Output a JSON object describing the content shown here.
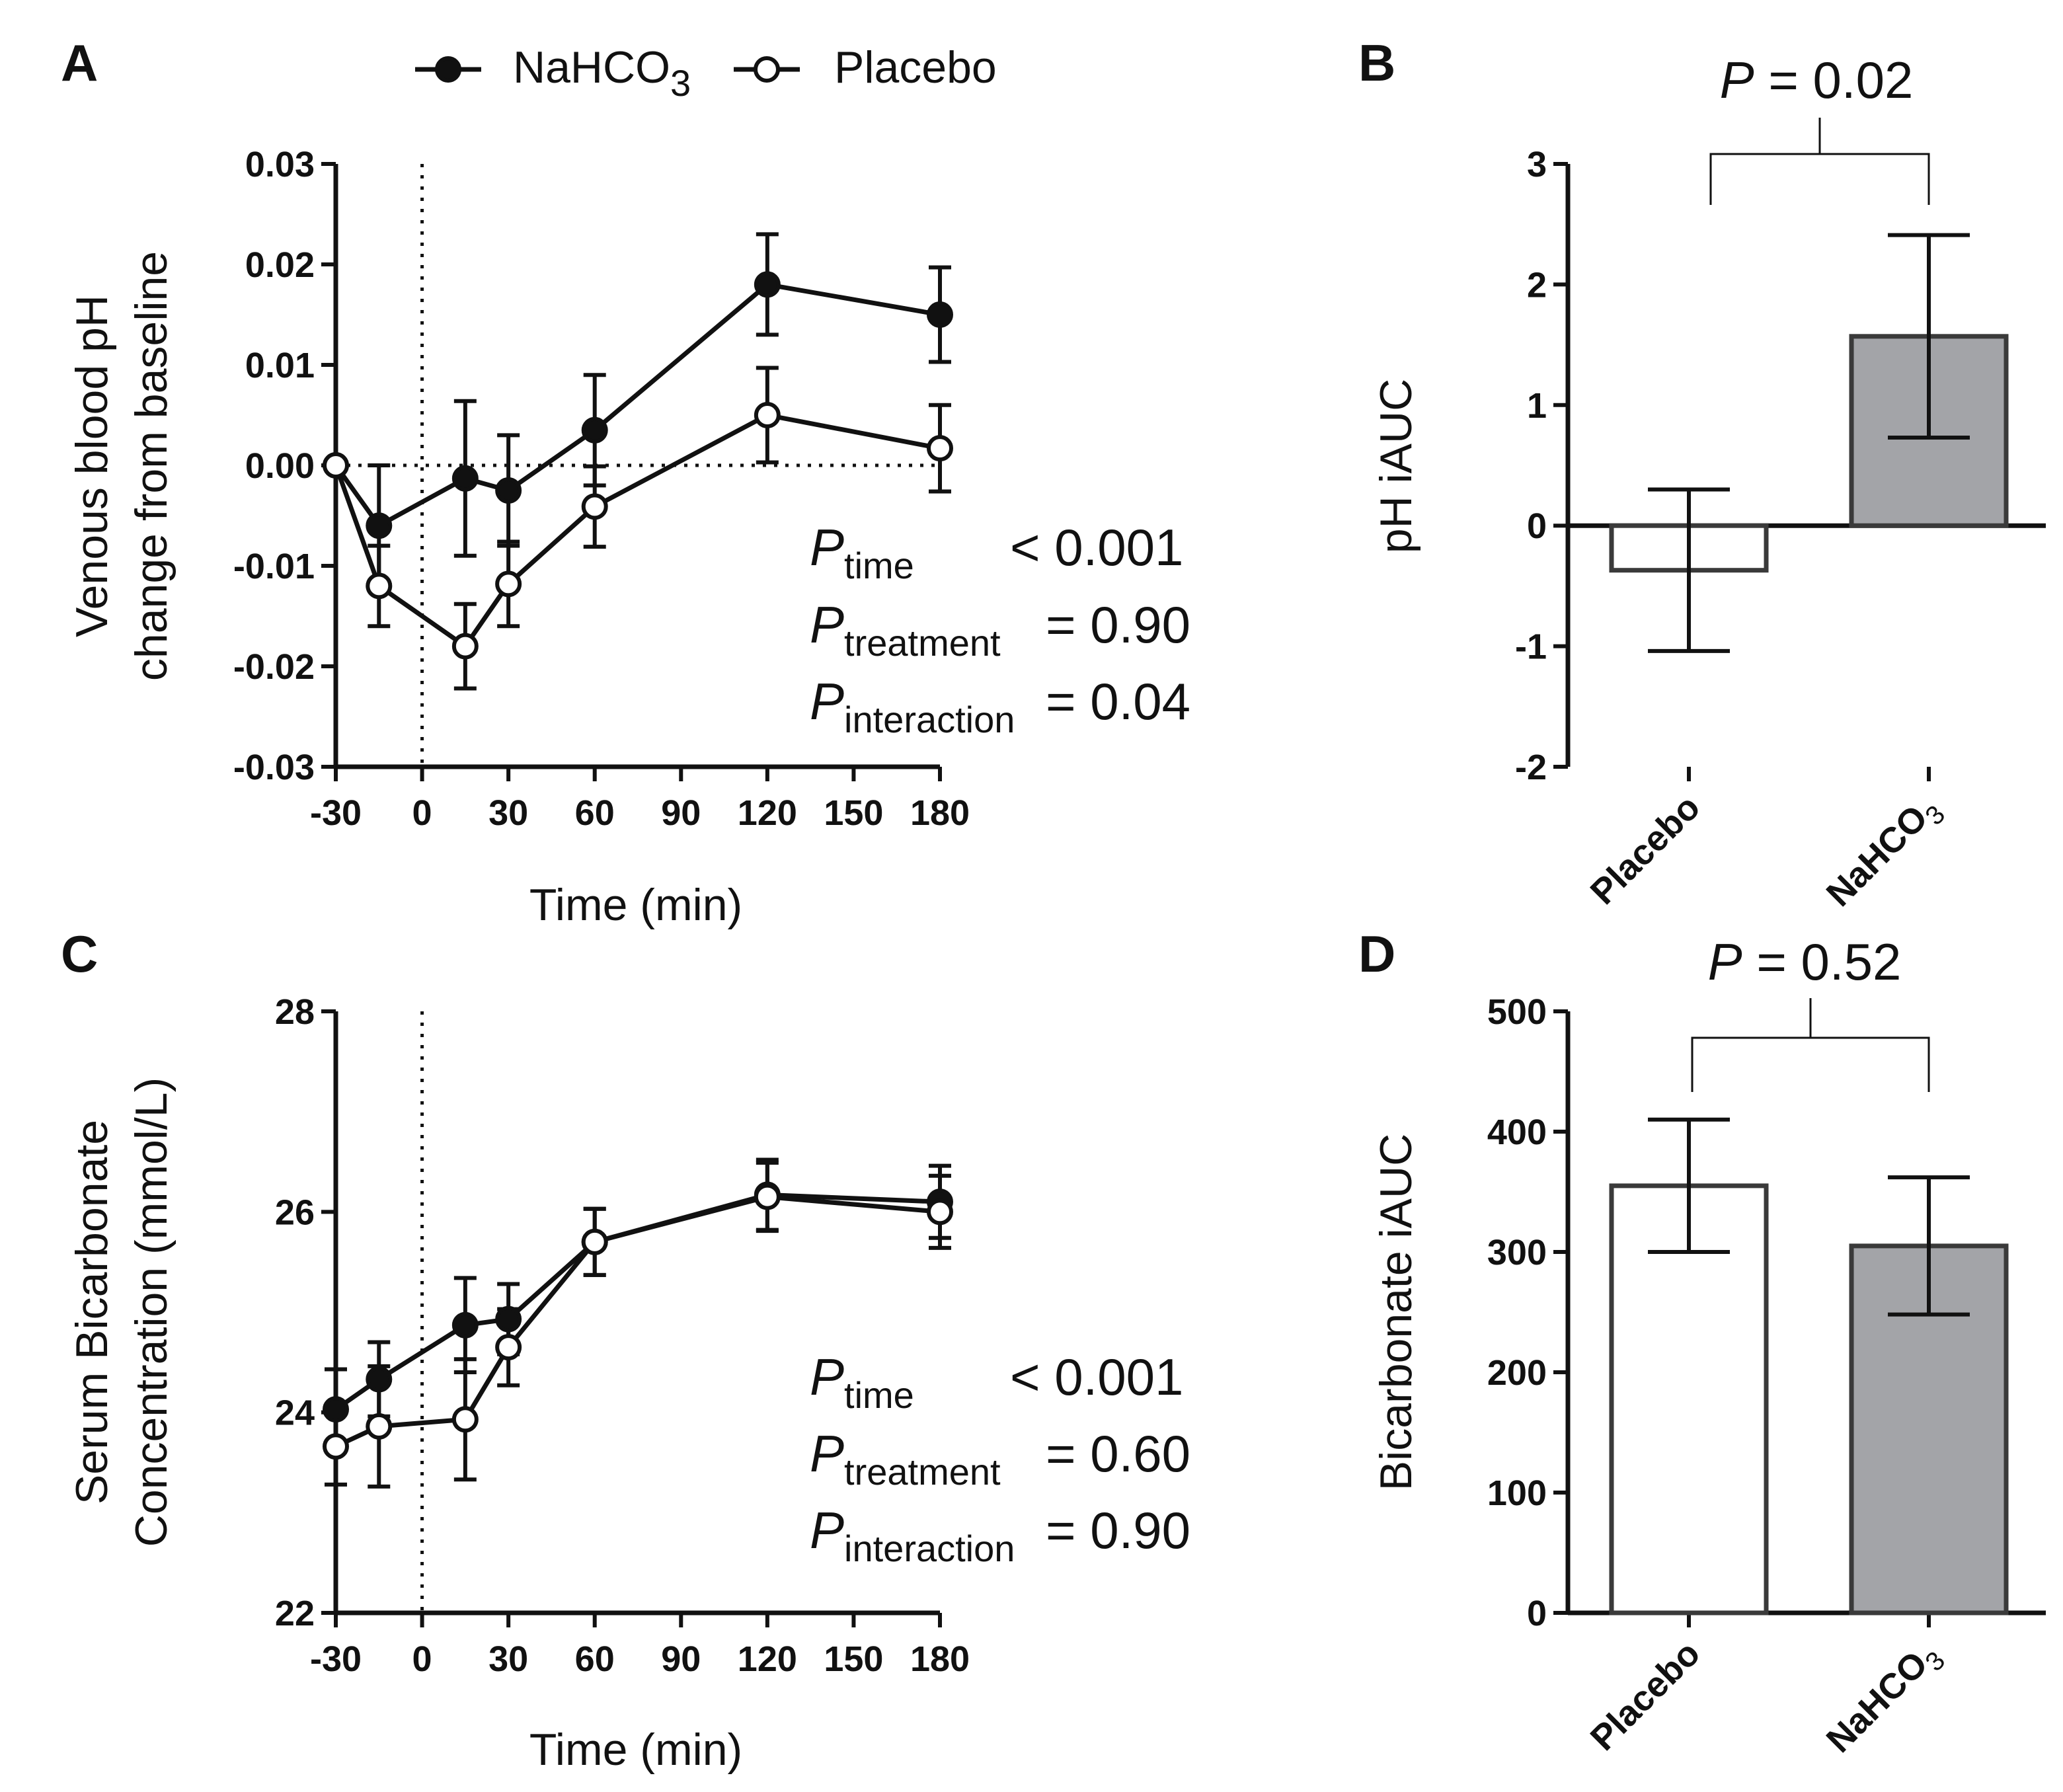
{
  "legend": {
    "nahco3": {
      "base": "NaHCO",
      "sub": "3"
    },
    "placebo": "Placebo"
  },
  "colors": {
    "line": "#111111",
    "nahco3_bar": "#a3a4a8",
    "placebo_bar": "#ffffff",
    "bar_stroke": "#3a3a3a"
  },
  "chart_data": [
    {
      "panel": "A",
      "type": "line",
      "xlabel": "Time (min)",
      "ylabel": [
        "Venous blood pH",
        "change from baseline"
      ],
      "x_ticks": [
        "-30",
        "0",
        "30",
        "60",
        "90",
        "120",
        "150",
        "180"
      ],
      "y_ticks": [
        "0.03",
        "0.02",
        "0.01",
        "0.00",
        "-0.01",
        "-0.02",
        "-0.03"
      ],
      "xlim": [
        -30,
        180
      ],
      "ylim": [
        -0.03,
        0.03
      ],
      "reference_lines": {
        "x": 0,
        "y": 0
      },
      "series": [
        {
          "name": "NaHCO3",
          "marker": "filled",
          "x": [
            -30,
            -15,
            15,
            30,
            60,
            120,
            180
          ],
          "y": [
            0.0,
            -0.006,
            -0.0013,
            -0.0025,
            0.0035,
            0.018,
            0.015
          ],
          "err": [
            0.0,
            0.006,
            0.0077,
            0.0055,
            0.0055,
            0.005,
            0.0047
          ]
        },
        {
          "name": "Placebo",
          "marker": "open",
          "x": [
            -30,
            -15,
            15,
            30,
            60,
            120,
            180
          ],
          "y": [
            0.0,
            -0.012,
            -0.018,
            -0.0118,
            -0.0041,
            0.005,
            0.0017
          ],
          "err": [
            0.0,
            0.004,
            0.0042,
            0.0042,
            0.004,
            0.0047,
            0.0043
          ]
        }
      ],
      "stats": [
        {
          "label": "P",
          "sub": "time",
          "value": "< 0.001"
        },
        {
          "label": "P",
          "sub": "treatment",
          "value": "= 0.90"
        },
        {
          "label": "P",
          "sub": "interaction",
          "value": "= 0.04"
        }
      ]
    },
    {
      "panel": "B",
      "type": "bar",
      "ylabel": "pH iAUC",
      "categories": [
        "Placebo",
        "NaHCO3"
      ],
      "cat_labels": [
        {
          "base": "Placebo",
          "sub": ""
        },
        {
          "base": "NaHCO",
          "sub": "3"
        }
      ],
      "values": [
        -0.37,
        1.57
      ],
      "err": [
        0.67,
        0.84
      ],
      "ylim": [
        -2,
        3
      ],
      "y_ticks": [
        "3",
        "2",
        "1",
        "0",
        "-1",
        "-2"
      ],
      "comparison": {
        "label": "P",
        "value": "= 0.02"
      }
    },
    {
      "panel": "C",
      "type": "line",
      "xlabel": "Time (min)",
      "ylabel": [
        "Serum Bicarbonate",
        "Concentration (mmol/L)"
      ],
      "x_ticks": [
        "-30",
        "0",
        "30",
        "60",
        "90",
        "120",
        "150",
        "180"
      ],
      "y_ticks": [
        "28",
        "26",
        "24",
        "22"
      ],
      "xlim": [
        -30,
        180
      ],
      "ylim": [
        22,
        28
      ],
      "reference_lines": {
        "x": 0
      },
      "series": [
        {
          "name": "NaHCO3",
          "marker": "filled",
          "x": [
            -30,
            -15,
            15,
            30,
            60,
            120,
            180
          ],
          "y": [
            24.03,
            24.33,
            24.87,
            24.93,
            25.7,
            26.17,
            26.1
          ],
          "err": [
            0.4,
            0.37,
            0.47,
            0.35,
            0.33,
            0.35,
            0.36
          ]
        },
        {
          "name": "Placebo",
          "marker": "open",
          "x": [
            -30,
            -15,
            15,
            30,
            60,
            120,
            180
          ],
          "y": [
            23.66,
            23.86,
            23.93,
            24.65,
            25.7,
            26.15,
            26.0
          ],
          "err": [
            0.38,
            0.6,
            0.6,
            0.38,
            0.33,
            0.34,
            0.36
          ]
        }
      ],
      "stats": [
        {
          "label": "P",
          "sub": "time",
          "value": "< 0.001"
        },
        {
          "label": "P",
          "sub": "treatment",
          "value": "= 0.60"
        },
        {
          "label": "P",
          "sub": "interaction",
          "value": "= 0.90"
        }
      ]
    },
    {
      "panel": "D",
      "type": "bar",
      "ylabel": "Bicarbonate iAUC",
      "categories": [
        "Placebo",
        "NaHCO3"
      ],
      "cat_labels": [
        {
          "base": "Placebo",
          "sub": ""
        },
        {
          "base": "NaHCO",
          "sub": "3"
        }
      ],
      "values": [
        355,
        305
      ],
      "err": [
        55,
        57
      ],
      "ylim": [
        0,
        500
      ],
      "y_ticks": [
        "500",
        "400",
        "300",
        "200",
        "100",
        "0"
      ],
      "comparison": {
        "label": "P",
        "value": "= 0.52"
      }
    }
  ]
}
